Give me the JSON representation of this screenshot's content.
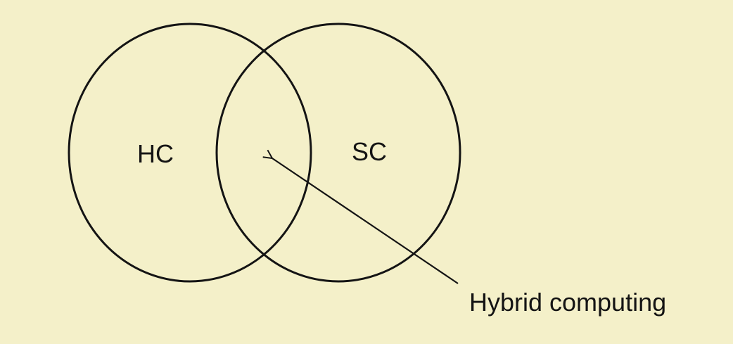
{
  "diagram": {
    "type": "venn",
    "sets": [
      {
        "id": "hc",
        "label": "HC"
      },
      {
        "id": "sc",
        "label": "SC"
      }
    ],
    "intersection": {
      "annotation": "Hybrid computing"
    }
  },
  "colors": {
    "background": "#f4f0c9",
    "stroke": "#141414"
  }
}
